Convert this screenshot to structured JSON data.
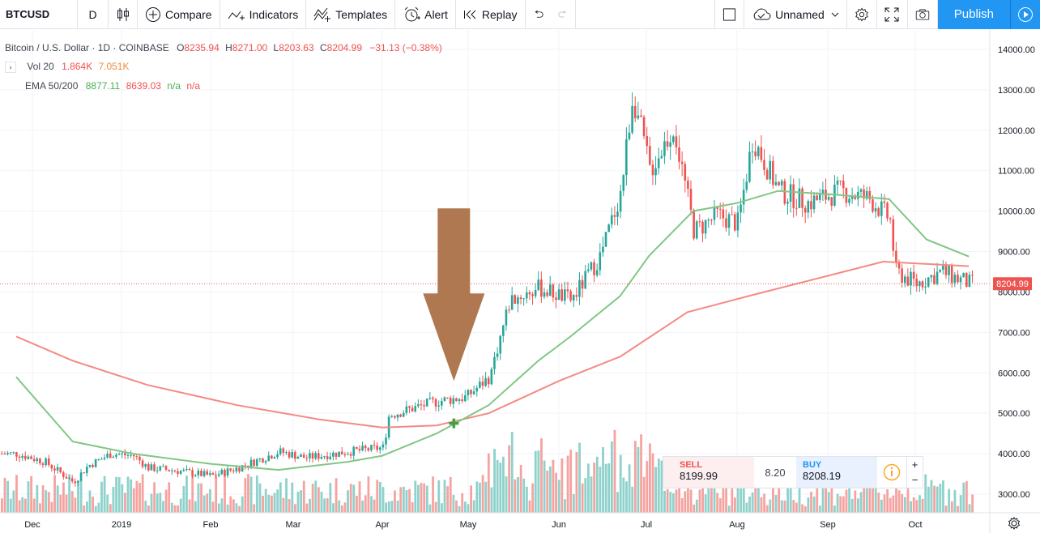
{
  "toolbar": {
    "symbol": "BTCUSD",
    "interval": "D",
    "compare": "Compare",
    "indicators": "Indicators",
    "templates": "Templates",
    "alert": "Alert",
    "replay": "Replay",
    "layout_name": "Unnamed",
    "publish": "Publish"
  },
  "legend": {
    "title": "Bitcoin / U.S. Dollar · 1D · COINBASE",
    "o_label": "O",
    "o": "8235.94",
    "h_label": "H",
    "h": "8271.00",
    "l_label": "L",
    "l": "8203.63",
    "c_label": "C",
    "c": "8204.99",
    "change": "−31.13 (−0.38%)",
    "vol_label": "Vol 20",
    "vol1": "1.864K",
    "vol2": "7.051K",
    "ema_label": "EMA 50/200",
    "ema1": "8877.11",
    "ema2": "8639.03",
    "ema3": "n/a",
    "ema4": "n/a"
  },
  "trade": {
    "sell_label": "SELL",
    "sell": "8199.99",
    "spread": "8.20",
    "buy_label": "BUY",
    "buy": "8208.19"
  },
  "price_axis": {
    "ticks": [
      "14000.00",
      "13000.00",
      "12000.00",
      "11000.00",
      "10000.00",
      "9000.00",
      "8000.00",
      "7000.00",
      "6000.00",
      "5000.00",
      "4000.00",
      "3000.00"
    ],
    "last_price": "8204.99"
  },
  "time_axis": {
    "ticks": [
      "Dec",
      "2019",
      "Feb",
      "Mar",
      "Apr",
      "May",
      "Jun",
      "Jul",
      "Aug",
      "Sep",
      "Oct"
    ]
  },
  "chart_data": {
    "type": "candlestick",
    "symbol": "BTCUSD",
    "interval": "1D",
    "ylim": [
      2500,
      14500
    ],
    "up_color": "#26a69a",
    "down_color": "#ef5350",
    "ema50_color": "#81c784",
    "ema200_color": "#f48a84",
    "annotation_arrow_color": "#b07850",
    "close_path": [
      {
        "date": "Nov 25",
        "v": 4000
      },
      {
        "date": "Dec 5",
        "v": 3800
      },
      {
        "date": "Dec 15",
        "v": 3300
      },
      {
        "date": "Dec 20",
        "v": 3700
      },
      {
        "date": "Dec 28",
        "v": 4000
      },
      {
        "date": "Jan 5",
        "v": 3950
      },
      {
        "date": "Jan 10",
        "v": 3650
      },
      {
        "date": "Jan 20",
        "v": 3580
      },
      {
        "date": "Feb 1",
        "v": 3450
      },
      {
        "date": "Feb 10",
        "v": 3650
      },
      {
        "date": "Feb 24",
        "v": 4050
      },
      {
        "date": "Mar 5",
        "v": 3900
      },
      {
        "date": "Mar 20",
        "v": 4050
      },
      {
        "date": "Apr 1",
        "v": 4150
      },
      {
        "date": "Apr 3",
        "v": 4950
      },
      {
        "date": "Apr 20",
        "v": 5300
      },
      {
        "date": "Apr 30",
        "v": 5400
      },
      {
        "date": "May 8",
        "v": 5900
      },
      {
        "date": "May 15",
        "v": 7800
      },
      {
        "date": "May 25",
        "v": 8100
      },
      {
        "date": "Jun 5",
        "v": 7800
      },
      {
        "date": "Jun 15",
        "v": 8900
      },
      {
        "date": "Jun 22",
        "v": 10500
      },
      {
        "date": "Jun 26",
        "v": 12900
      },
      {
        "date": "Jul 2",
        "v": 11000
      },
      {
        "date": "Jul 10",
        "v": 12100
      },
      {
        "date": "Jul 17",
        "v": 9500
      },
      {
        "date": "Jul 25",
        "v": 9900
      },
      {
        "date": "Aug 1",
        "v": 9700
      },
      {
        "date": "Aug 6",
        "v": 11800
      },
      {
        "date": "Aug 15",
        "v": 10500
      },
      {
        "date": "Aug 25",
        "v": 10200
      },
      {
        "date": "Sep 5",
        "v": 10500
      },
      {
        "date": "Sep 15",
        "v": 10300
      },
      {
        "date": "Sep 22",
        "v": 9800
      },
      {
        "date": "Sep 24",
        "v": 8500
      },
      {
        "date": "Oct 1",
        "v": 8200
      },
      {
        "date": "Oct 10",
        "v": 8500
      },
      {
        "date": "Oct 20",
        "v": 8205
      }
    ],
    "ema50_path": [
      {
        "date": "Nov 25",
        "v": 5900
      },
      {
        "date": "Dec 15",
        "v": 4300
      },
      {
        "date": "Jan 5",
        "v": 4000
      },
      {
        "date": "Feb 1",
        "v": 3750
      },
      {
        "date": "Feb 24",
        "v": 3600
      },
      {
        "date": "Mar 20",
        "v": 3800
      },
      {
        "date": "Apr 1",
        "v": 3950
      },
      {
        "date": "Apr 20",
        "v": 4500
      },
      {
        "date": "May 8",
        "v": 5200
      },
      {
        "date": "May 25",
        "v": 6300
      },
      {
        "date": "Jun 5",
        "v": 6900
      },
      {
        "date": "Jun 22",
        "v": 7900
      },
      {
        "date": "Jul 2",
        "v": 8900
      },
      {
        "date": "Jul 17",
        "v": 10000
      },
      {
        "date": "Aug 1",
        "v": 10200
      },
      {
        "date": "Aug 15",
        "v": 10500
      },
      {
        "date": "Sep 5",
        "v": 10400
      },
      {
        "date": "Sep 22",
        "v": 10300
      },
      {
        "date": "Oct 5",
        "v": 9300
      },
      {
        "date": "Oct 20",
        "v": 8877
      }
    ],
    "ema200_path": [
      {
        "date": "Nov 25",
        "v": 6900
      },
      {
        "date": "Dec 15",
        "v": 6300
      },
      {
        "date": "Jan 10",
        "v": 5700
      },
      {
        "date": "Feb 10",
        "v": 5200
      },
      {
        "date": "Mar 10",
        "v": 4850
      },
      {
        "date": "Apr 1",
        "v": 4650
      },
      {
        "date": "Apr 20",
        "v": 4700
      },
      {
        "date": "May 8",
        "v": 5000
      },
      {
        "date": "Jun 1",
        "v": 5800
      },
      {
        "date": "Jun 22",
        "v": 6400
      },
      {
        "date": "Jul 15",
        "v": 7500
      },
      {
        "date": "Aug 5",
        "v": 7900
      },
      {
        "date": "Sep 1",
        "v": 8400
      },
      {
        "date": "Sep 20",
        "v": 8750
      },
      {
        "date": "Oct 20",
        "v": 8639
      }
    ],
    "annotations": [
      {
        "type": "arrow-down",
        "date": "Apr 26",
        "value": 5800
      },
      {
        "type": "cross-marker",
        "date": "Apr 26",
        "value": 4750
      }
    ]
  }
}
